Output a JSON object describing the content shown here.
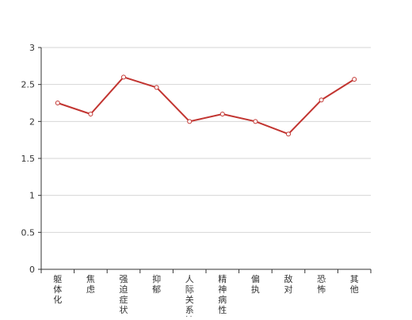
{
  "chart_data": {
    "type": "line",
    "categories": [
      "躯体化",
      "焦虑",
      "强迫症状",
      "抑郁",
      "人际关系敏感",
      "精神病性",
      "偏执",
      "敌对",
      "恐怖",
      "其他"
    ],
    "series": [
      {
        "values": [
          2.25,
          2.1,
          2.6,
          2.46,
          2.0,
          2.1,
          2.0,
          1.83,
          2.29,
          2.57
        ],
        "color": "#c23531"
      }
    ],
    "yticks": [
      "0",
      "0.5",
      "1",
      "1.5",
      "2",
      "2.5",
      "3"
    ],
    "ylim": [
      0,
      3
    ],
    "grid": true,
    "legend": "none",
    "axis_color": "#333333",
    "grid_color": "#d6d6d6"
  }
}
